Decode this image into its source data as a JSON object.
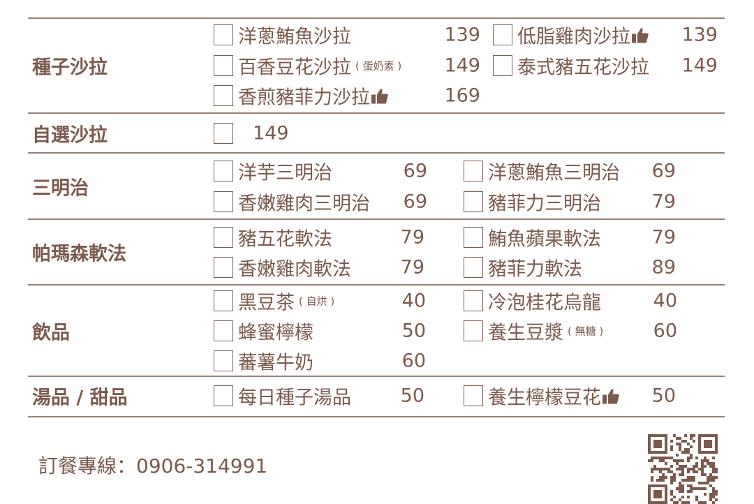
{
  "theme": {
    "text_color": "#7b5a4d",
    "rule_color": "#9a7f73"
  },
  "menu": [
    {
      "category": "種子沙拉",
      "items": [
        {
          "name": "洋蔥鮪魚沙拉",
          "price": "139"
        },
        {
          "name": "低脂雞肉沙拉",
          "price": "139",
          "icon": "thumbs-up-icon"
        },
        {
          "name": "百香豆花沙拉",
          "note": "( 蛋奶素 )",
          "price": "149"
        },
        {
          "name": "泰式豬五花沙拉",
          "price": "149"
        },
        {
          "name": "香煎豬菲力沙拉",
          "price": "169",
          "icon": "thumbs-up-icon"
        }
      ]
    },
    {
      "category": "自選沙拉",
      "items": [
        {
          "name": "",
          "price": "149"
        }
      ]
    },
    {
      "category": "三明治",
      "items": [
        {
          "name": "洋芋三明治",
          "price": "69"
        },
        {
          "name": "洋蔥鮪魚三明治",
          "price": "69"
        },
        {
          "name": "香嫩雞肉三明治",
          "price": "69"
        },
        {
          "name": "豬菲力三明治",
          "price": "79"
        }
      ]
    },
    {
      "category": "帕瑪森軟法",
      "items": [
        {
          "name": "豬五花軟法",
          "price": "79"
        },
        {
          "name": "鮪魚蘋果軟法",
          "price": "79"
        },
        {
          "name": "香嫩雞肉軟法",
          "price": "79"
        },
        {
          "name": "豬菲力軟法",
          "price": "89"
        }
      ]
    },
    {
      "category": "飲品",
      "items": [
        {
          "name": "黑豆茶",
          "note": "( 自烘 )",
          "price": "40"
        },
        {
          "name": "冷泡桂花烏龍",
          "price": "40"
        },
        {
          "name": "蜂蜜檸檬",
          "price": "50"
        },
        {
          "name": "養生豆漿",
          "note": "( 無糖 )",
          "price": "60"
        },
        {
          "name": "蕃薯牛奶",
          "price": "60"
        }
      ]
    },
    {
      "category": "湯品 / 甜品",
      "items": [
        {
          "name": "每日種子湯品",
          "price": "50"
        },
        {
          "name": "養生檸檬豆花",
          "price": "50",
          "icon": "thumbs-up-icon"
        }
      ]
    }
  ],
  "footer": {
    "phone": "訂餐專線：0906-314991",
    "qr_icon": "qr-code-icon"
  }
}
